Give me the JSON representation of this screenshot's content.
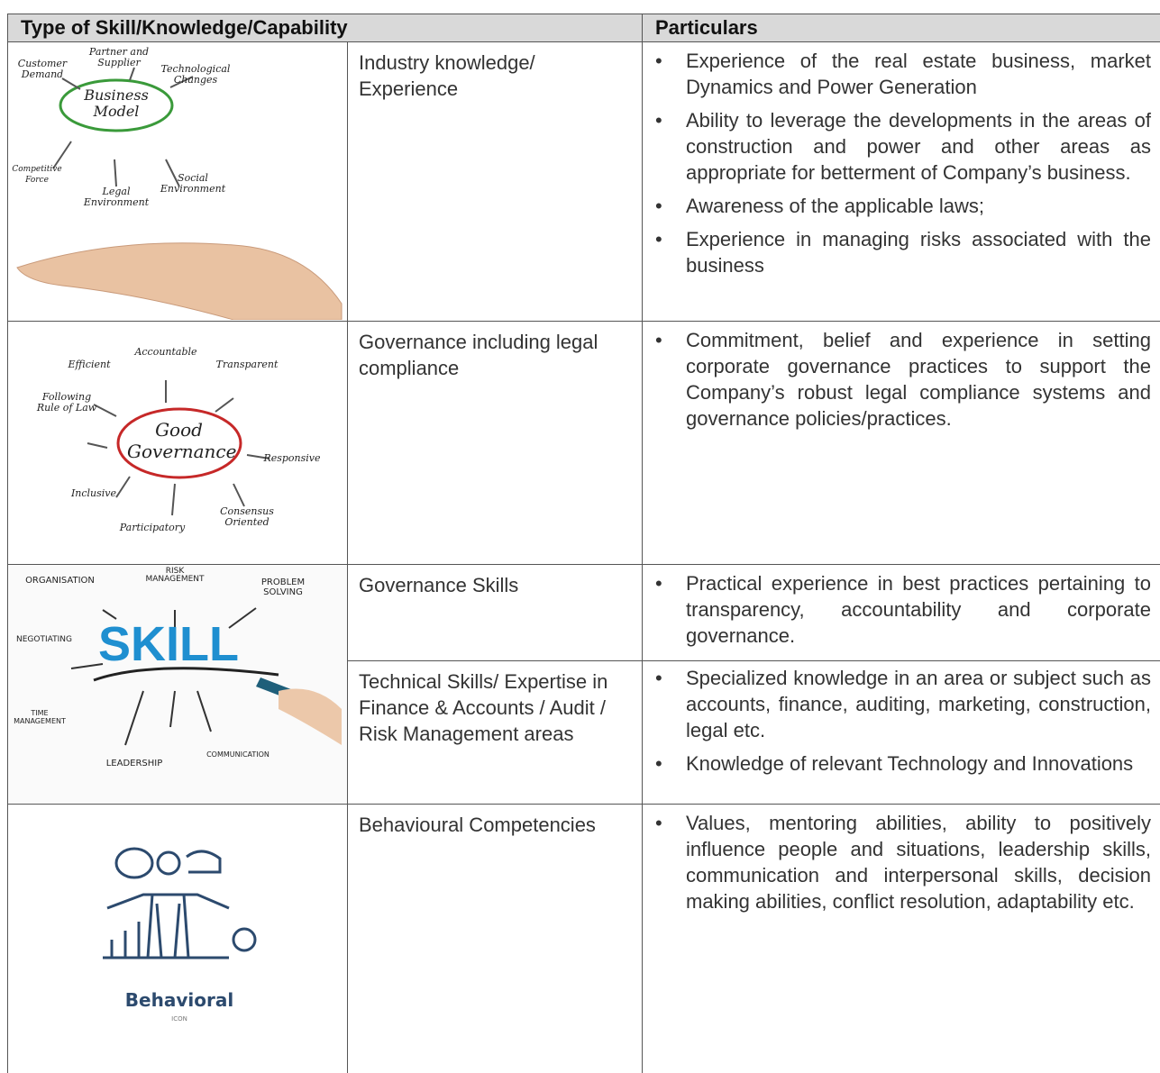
{
  "table": {
    "header": [
      "Type of Skill/Knowledge/Capability",
      "Particulars"
    ],
    "rows": [
      {
        "image": {
          "labels": [
            "Customer Demand",
            "Partner and Supplier",
            "Technological Changes",
            "Business Model",
            "Competitive Force",
            "Legal Environment",
            "Social Environment"
          ]
        },
        "skills": [
          {
            "name": "Industry knowledge/ Experience",
            "particulars": [
              "Experience of the real estate business, market Dynamics and Power Generation",
              "Ability to leverage the developments in the areas of construction and power and other areas as appropriate for betterment of Company’s business.",
              "Awareness of the applicable laws;",
              "Experience in managing risks associated with the business"
            ]
          }
        ]
      },
      {
        "image": {
          "labels": [
            "Accountable",
            "Efficient",
            "Transparent",
            "Following Rule of Law",
            "Good Governance",
            "Responsive",
            "Inclusive",
            "Consensus Oriented",
            "Participatory"
          ]
        },
        "skills": [
          {
            "name": "Governance including legal compliance",
            "particulars": [
              "Commitment, belief and experience in setting corporate governance practices to support the Company’s robust legal compliance systems and governance policies/practices."
            ]
          }
        ]
      },
      {
        "image": {
          "labels": [
            "ORGANISATION",
            "RISK MANAGEMENT",
            "PROBLEM SOLVING",
            "NEGOTIATING",
            "SKILL",
            "TIME MANAGEMENT",
            "LEADERSHIP",
            "COMMUNICATION"
          ]
        },
        "skills": [
          {
            "name": "Governance Skills",
            "particulars": [
              "Practical experience in best practices pertaining to transparency, accountability and corporate governance."
            ]
          },
          {
            "name": "Technical Skills/ Expertise in Finance & Accounts / Audit / Risk Management areas",
            "particulars": [
              "Specialized knowledge in an area or subject such as accounts, finance, auditing, marketing, construction, legal etc.",
              "Knowledge of relevant Technology and Innovations"
            ]
          }
        ]
      },
      {
        "image": {
          "labels": [
            "Behavioral",
            "ICON"
          ]
        },
        "skills": [
          {
            "name": "Behavioural Competencies",
            "particulars": [
              "Values, mentoring abilities, ability to positively influence people and situations, leadership skills, communication and interpersonal skills, decision making abilities, conflict resolution, adaptability etc."
            ]
          }
        ]
      }
    ]
  }
}
